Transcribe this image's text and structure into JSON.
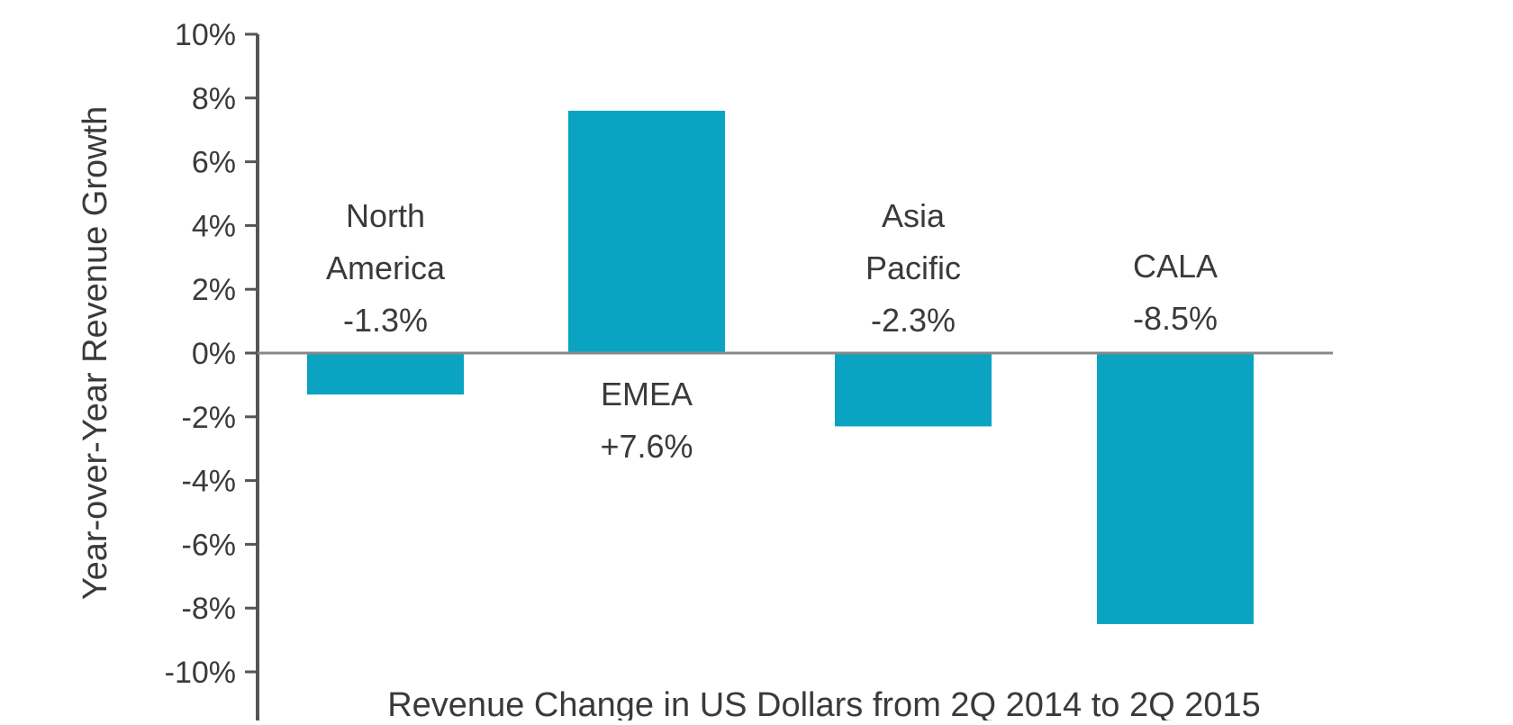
{
  "chart_data": {
    "type": "bar",
    "title": "",
    "xlabel": "Revenue Change in US Dollars from 2Q 2014 to 2Q 2015",
    "ylabel": "Year-over-Year Revenue Growth",
    "ylim": [
      -10,
      10
    ],
    "yticks": [
      10,
      8,
      6,
      4,
      2,
      0,
      -2,
      -4,
      -6,
      -8,
      -10
    ],
    "ytick_labels": [
      "10%",
      "8%",
      "6%",
      "4%",
      "2%",
      "0%",
      "-2%",
      "-4%",
      "-6%",
      "-8%",
      "-10%"
    ],
    "categories": [
      "North America",
      "EMEA",
      "Asia Pacific",
      "CALA"
    ],
    "values": [
      -1.3,
      7.6,
      -2.3,
      -8.5
    ],
    "data_labels": [
      "-1.3%",
      "+7.6%",
      "-2.3%",
      "-8.5%"
    ],
    "category_label_lines": [
      [
        "North",
        "America",
        "-1.3%"
      ],
      [
        "EMEA",
        "+7.6%"
      ],
      [
        "Asia",
        "Pacific",
        "-2.3%"
      ],
      [
        "CALA",
        "-8.5%"
      ]
    ],
    "bar_color": "#0aa3c2",
    "grid": false,
    "legend": "none"
  }
}
